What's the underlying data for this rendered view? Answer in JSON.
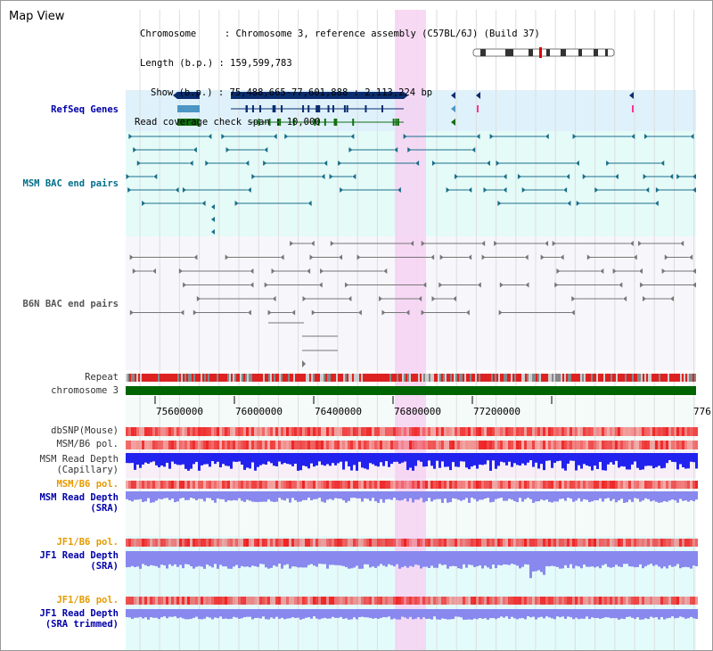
{
  "page": {
    "title": "Map View"
  },
  "info": {
    "chromosome_label": "Chromosome",
    "chromosome_value": "Chromosome 3, reference assembly (C57BL/6J) (Build 37)",
    "length_label": "Length (b.p.)",
    "length_value": "159,599,783",
    "show_label": "Show (b.p.)",
    "show_value": "75,488,665-77,601,888 : 2,113,224 bp",
    "coverage_label": "Read coverage check span",
    "coverage_value": "10,000"
  },
  "tracks": {
    "refseq": "RefSeq Genes",
    "msm_bac": "MSM BAC end pairs",
    "b6n_bac": "B6N BAC end pairs",
    "repeat": "Repeat",
    "chromosome": "chromosome 3",
    "dbsnp": "dbSNP(Mouse)",
    "msm_b6_pol_1": "MSM/B6 pol.",
    "msm_depth_cap_1": "MSM Read Depth",
    "msm_depth_cap_2": "(Capillary)",
    "msm_b6_pol_2": "MSM/B6 pol.",
    "msm_depth_sra_1": "MSM Read Depth",
    "msm_depth_sra_2": "(SRA)",
    "jf1_b6_pol_1": "JF1/B6 pol.",
    "jf1_depth_sra_1": "JF1 Read Depth",
    "jf1_depth_sra_2": "(SRA)",
    "jf1_b6_pol_2": "JF1/B6 pol.",
    "jf1_depth_trim_1": "JF1 Read Depth",
    "jf1_depth_trim_2": "(SRA trimmed)"
  },
  "axis": {
    "ticks": [
      "75600000",
      "76000000",
      "76400000",
      "76800000",
      "77200000",
      "776"
    ]
  },
  "colors": {
    "refseq_bg": "#dff1fb",
    "bac_bg": "#e4fbf8",
    "highlight": "#f6d2f2",
    "chromosome": "#006400",
    "snp": "#ee2222",
    "depth_dark": "#2222ee",
    "depth_light": "#8888ee",
    "label_blue": "#0000aa",
    "label_teal": "#006f8a",
    "label_orange": "#e69a00",
    "label_gray": "#555555"
  }
}
